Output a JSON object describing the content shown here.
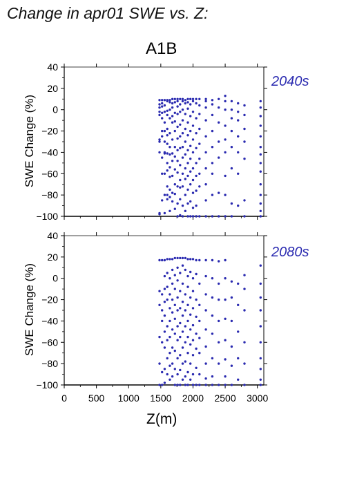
{
  "page_title": "Change in apr01 SWE vs. Z:",
  "chart_data": [
    {
      "type": "scatter",
      "title": "A1B",
      "panel_label": "2040s",
      "xlabel": "",
      "ylabel": "SWE Change (%)",
      "xlim": [
        0,
        3100
      ],
      "ylim": [
        -100,
        40
      ],
      "yticks": [
        40,
        20,
        0,
        -20,
        -40,
        -60,
        -80,
        -100
      ],
      "xticks": [
        0,
        500,
        1000,
        1500,
        2000,
        2500,
        3000
      ],
      "grid": false,
      "marker_color": "#2a2ab0",
      "columns": [
        {
          "x": 1480,
          "y": [
            9,
            5,
            2,
            -2,
            -5,
            -28,
            -30,
            -40,
            -97,
            -98
          ]
        },
        {
          "x": 1520,
          "y": [
            9,
            6,
            3,
            -3,
            -8,
            -20,
            -25,
            -45,
            -60,
            -85
          ]
        },
        {
          "x": 1560,
          "y": [
            9,
            4,
            -2,
            -12,
            -20,
            -30,
            -40,
            -41,
            -60,
            -80,
            -97
          ]
        },
        {
          "x": 1600,
          "y": [
            9,
            8,
            -1,
            -5,
            -18,
            -24,
            -32,
            -41,
            -50,
            -57,
            -72,
            -80,
            -84
          ]
        },
        {
          "x": 1640,
          "y": [
            9,
            7,
            0,
            -8,
            -22,
            -35,
            -42,
            -54,
            -63,
            -75,
            -82,
            -95
          ]
        },
        {
          "x": 1680,
          "y": [
            10,
            6,
            2,
            -6,
            -12,
            -28,
            -41,
            -48,
            -62,
            -78,
            -86
          ]
        },
        {
          "x": 1720,
          "y": [
            10,
            7,
            -3,
            -11,
            -20,
            -35,
            -44,
            -56,
            -70,
            -79,
            -93
          ]
        },
        {
          "x": 1760,
          "y": [
            10,
            8,
            3,
            -4,
            -16,
            -27,
            -38,
            -48,
            -59,
            -72,
            -88,
            -100
          ]
        },
        {
          "x": 1800,
          "y": [
            10,
            5,
            -2,
            -14,
            -25,
            -36,
            -52,
            -66,
            -73,
            -84,
            -99
          ]
        },
        {
          "x": 1840,
          "y": [
            10,
            8,
            0,
            -10,
            -22,
            -35,
            -45,
            -60,
            -72,
            -90,
            -100
          ]
        },
        {
          "x": 1880,
          "y": [
            9,
            6,
            -4,
            -18,
            -30,
            -42,
            -55,
            -65,
            -80,
            -95
          ]
        },
        {
          "x": 1920,
          "y": [
            10,
            7,
            1,
            -12,
            -24,
            -38,
            -50,
            -62,
            -75,
            -88,
            -100
          ]
        },
        {
          "x": 1960,
          "y": [
            10,
            5,
            -6,
            -20,
            -34,
            -46,
            -58,
            -70,
            -86,
            -100
          ]
        },
        {
          "x": 2000,
          "y": [
            10,
            8,
            -2,
            -15,
            -28,
            -40,
            -55,
            -66,
            -78,
            -92,
            -100
          ]
        },
        {
          "x": 2050,
          "y": [
            10,
            6,
            -8,
            -22,
            -36,
            -50,
            -62,
            -76,
            -90,
            -100
          ]
        },
        {
          "x": 2100,
          "y": [
            10,
            4,
            -4,
            -18,
            -32,
            -46,
            -60,
            -72,
            -100
          ]
        },
        {
          "x": 2200,
          "y": [
            10,
            8,
            2,
            -10,
            -25,
            -40,
            -55,
            -70,
            -85,
            -100
          ]
        },
        {
          "x": 2300,
          "y": [
            9,
            5,
            -5,
            -20,
            -35,
            -50,
            -60,
            -80,
            -100
          ]
        },
        {
          "x": 2400,
          "y": [
            10,
            2,
            -12,
            -30,
            -45,
            -78,
            -100
          ]
        },
        {
          "x": 2500,
          "y": [
            13,
            8,
            0,
            -15,
            -28,
            -40,
            -62,
            -80,
            -100
          ]
        },
        {
          "x": 2600,
          "y": [
            8,
            0,
            -8,
            -20,
            -35,
            -55,
            -88,
            -100
          ]
        },
        {
          "x": 2700,
          "y": [
            6,
            -2,
            -10,
            -25,
            -40,
            -60,
            -90
          ]
        },
        {
          "x": 2800,
          "y": [
            4,
            -5,
            -18,
            -30,
            -46,
            -85,
            -100
          ]
        },
        {
          "x": 3050,
          "y": [
            8,
            2,
            -6,
            -15,
            -25,
            -35,
            -42,
            -50,
            -58,
            -70,
            -80,
            -88,
            -95,
            -100
          ]
        }
      ]
    },
    {
      "type": "scatter",
      "title": "",
      "panel_label": "2080s",
      "xlabel": "Z(m)",
      "ylabel": "SWE Change (%)",
      "xlim": [
        0,
        3100
      ],
      "ylim": [
        -100,
        40
      ],
      "yticks": [
        40,
        20,
        0,
        -20,
        -40,
        -60,
        -80,
        -100
      ],
      "xticks": [
        0,
        500,
        1000,
        1500,
        2000,
        2500,
        3000
      ],
      "grid": false,
      "marker_color": "#2a2ab0",
      "columns": [
        {
          "x": 1480,
          "y": [
            17,
            -12,
            -25,
            -55,
            -80,
            -100
          ]
        },
        {
          "x": 1520,
          "y": [
            17,
            -15,
            -30,
            -40,
            -60,
            -88,
            -100
          ]
        },
        {
          "x": 1560,
          "y": [
            17,
            2,
            -10,
            -22,
            -35,
            -50,
            -65,
            -85,
            -98
          ]
        },
        {
          "x": 1600,
          "y": [
            18,
            5,
            -8,
            -20,
            -45,
            -58,
            -75,
            -90
          ]
        },
        {
          "x": 1640,
          "y": [
            18,
            0,
            -15,
            -28,
            -40,
            -55,
            -70,
            -82,
            -95
          ]
        },
        {
          "x": 1680,
          "y": [
            18,
            8,
            -5,
            -20,
            -32,
            -48,
            -65,
            -80,
            -92
          ]
        },
        {
          "x": 1720,
          "y": [
            19,
            3,
            -10,
            -25,
            -38,
            -52,
            -68,
            -85,
            -100
          ]
        },
        {
          "x": 1760,
          "y": [
            19,
            10,
            -2,
            -18,
            -30,
            -45,
            -58,
            -75,
            -90,
            -100
          ]
        },
        {
          "x": 1800,
          "y": [
            19,
            5,
            -12,
            -28,
            -42,
            -55,
            -72,
            -86,
            -100
          ]
        },
        {
          "x": 1840,
          "y": [
            19,
            12,
            -5,
            -22,
            -35,
            -50,
            -65,
            -80,
            -95
          ]
        },
        {
          "x": 1880,
          "y": [
            19,
            8,
            -15,
            -30,
            -45,
            -60,
            -78,
            -92,
            -100
          ]
        },
        {
          "x": 1920,
          "y": [
            18,
            2,
            -8,
            -25,
            -40,
            -55,
            -70,
            -88,
            -100
          ]
        },
        {
          "x": 1960,
          "y": [
            18,
            6,
            -18,
            -34,
            -48,
            -62,
            -80,
            -95
          ]
        },
        {
          "x": 2000,
          "y": [
            18,
            0,
            -12,
            -28,
            -44,
            -58,
            -72,
            -90,
            -100
          ]
        },
        {
          "x": 2050,
          "y": [
            17,
            4,
            -20,
            -36,
            -52,
            -66,
            -84,
            -100
          ]
        },
        {
          "x": 2100,
          "y": [
            17,
            -5,
            -25,
            -40,
            -56,
            -70,
            -90,
            -100
          ]
        },
        {
          "x": 2200,
          "y": [
            17,
            2,
            -15,
            -30,
            -48,
            -64,
            -80,
            -94,
            -100
          ]
        },
        {
          "x": 2300,
          "y": [
            17,
            0,
            -18,
            -35,
            -52,
            -75,
            -92,
            -100
          ]
        },
        {
          "x": 2400,
          "y": [
            16,
            -5,
            -20,
            -40,
            -60,
            -80,
            -100
          ]
        },
        {
          "x": 2500,
          "y": [
            17,
            0,
            -20,
            -38,
            -58,
            -76,
            -92,
            -100
          ]
        },
        {
          "x": 2600,
          "y": [
            -3,
            -18,
            -40,
            -64,
            -82,
            -100
          ]
        },
        {
          "x": 2700,
          "y": [
            -5,
            -25,
            -50,
            -75,
            -95
          ]
        },
        {
          "x": 2800,
          "y": [
            3,
            -10,
            -30,
            -60,
            -80,
            -100
          ]
        },
        {
          "x": 3050,
          "y": [
            12,
            -5,
            -18,
            -30,
            -45,
            -60,
            -75,
            -85,
            -95,
            -100
          ]
        }
      ]
    }
  ]
}
